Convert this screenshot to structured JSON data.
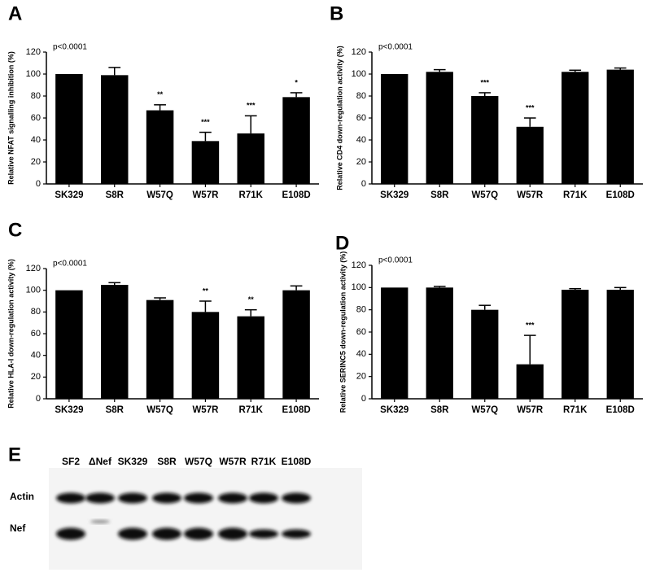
{
  "chart_data": [
    {
      "type": "bar",
      "panel_label": "A",
      "annotation": "p<0.0001",
      "ylabel": "Relative NFAT signalling inhibition (%)",
      "categories": [
        "SK329",
        "S8R",
        "W57Q",
        "W57R",
        "R71K",
        "E108D"
      ],
      "values": [
        100,
        99,
        67,
        39,
        46,
        79
      ],
      "errors": [
        null,
        7,
        5,
        8,
        16,
        4
      ],
      "significance": [
        null,
        null,
        "**",
        "***",
        "***",
        "*"
      ],
      "color": "#000000",
      "ylim": [
        0,
        120
      ],
      "yticks": [
        0,
        20,
        40,
        60,
        80,
        100,
        120
      ]
    },
    {
      "type": "bar",
      "panel_label": "B",
      "annotation": "p<0.0001",
      "ylabel": "Relative CD4 down-regulation activity (%)",
      "categories": [
        "SK329",
        "S8R",
        "W57Q",
        "W57R",
        "R71K",
        "E108D"
      ],
      "values": [
        100,
        102,
        80,
        52,
        102,
        104
      ],
      "errors": [
        null,
        2,
        3,
        8,
        1.5,
        1.5
      ],
      "significance": [
        null,
        null,
        "***",
        "***",
        null,
        null
      ],
      "color": "#000000",
      "ylim": [
        0,
        120
      ],
      "yticks": [
        0,
        20,
        40,
        60,
        80,
        100,
        120
      ]
    },
    {
      "type": "bar",
      "panel_label": "C",
      "annotation": "p<0.0001",
      "ylabel": "Relative HLA-I down-regulation activity (%)",
      "categories": [
        "SK329",
        "S8R",
        "W57Q",
        "W57R",
        "R71K",
        "E108D"
      ],
      "values": [
        100,
        105,
        91,
        80,
        76,
        100
      ],
      "errors": [
        null,
        2,
        2,
        10,
        6,
        4
      ],
      "significance": [
        null,
        null,
        null,
        "**",
        "**",
        null
      ],
      "color": "#000000",
      "ylim": [
        0,
        120
      ],
      "yticks": [
        0,
        20,
        40,
        60,
        80,
        100,
        120
      ]
    },
    {
      "type": "bar",
      "panel_label": "D",
      "annotation": "p<0.0001",
      "ylabel": "Relative SERINC5 down-regulation activity (%)",
      "categories": [
        "SK329",
        "S8R",
        "W57Q",
        "W57R",
        "R71K",
        "E108D"
      ],
      "values": [
        100,
        100,
        80,
        31,
        98,
        98
      ],
      "errors": [
        null,
        1,
        4,
        26,
        1,
        2
      ],
      "significance": [
        null,
        null,
        null,
        "***",
        null,
        null
      ],
      "color": "#000000",
      "ylim": [
        0,
        120
      ],
      "yticks": [
        0,
        20,
        40,
        60,
        80,
        100,
        120
      ]
    }
  ],
  "blot": {
    "panel_label": "E",
    "lanes": [
      "SF2",
      "ΔNef",
      "SK329",
      "S8R",
      "W57Q",
      "W57R",
      "R71K",
      "E108D"
    ],
    "rows": [
      "Actin",
      "Nef"
    ]
  }
}
